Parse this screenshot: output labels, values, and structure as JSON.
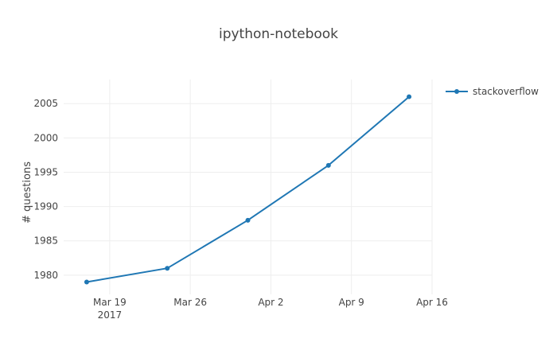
{
  "chart_data": {
    "type": "line",
    "title": "ipython-notebook",
    "xlabel": "",
    "ylabel": "# questions",
    "x": [
      "2017-03-17",
      "2017-03-24",
      "2017-03-31",
      "2017-04-07",
      "2017-04-14"
    ],
    "x_tick_labels": [
      {
        "date": "2017-03-19",
        "label": "Mar 19",
        "sublabel": "2017"
      },
      {
        "date": "2017-03-26",
        "label": "Mar 26",
        "sublabel": ""
      },
      {
        "date": "2017-04-02",
        "label": "Apr 2",
        "sublabel": ""
      },
      {
        "date": "2017-04-09",
        "label": "Apr 9",
        "sublabel": ""
      },
      {
        "date": "2017-04-16",
        "label": "Apr 16",
        "sublabel": ""
      }
    ],
    "xlim": [
      "2017-03-15",
      "2017-04-16"
    ],
    "y_ticks": [
      1980,
      1985,
      1990,
      1995,
      2000,
      2005
    ],
    "ylim": [
      1977.2,
      2008.5
    ],
    "series": [
      {
        "name": "stackoverflow",
        "values": [
          1979,
          1981,
          1988,
          1996,
          2006
        ],
        "color": "#1f77b4"
      }
    ],
    "grid": true,
    "legend_position": "top-right"
  }
}
